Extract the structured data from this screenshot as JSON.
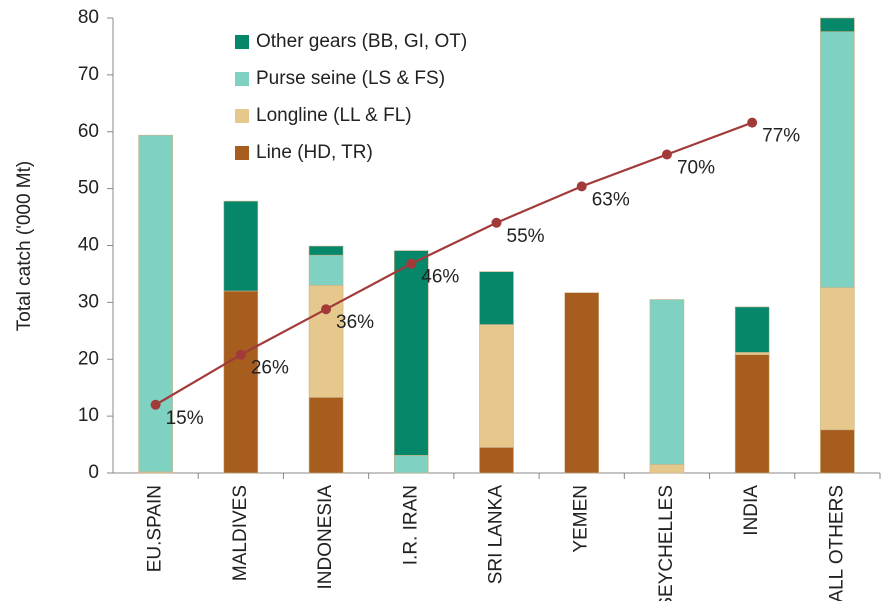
{
  "chart_data": {
    "type": "stacked_bar_line",
    "y_label": "Total catch ('000 Mt)",
    "categories": [
      "EU.SPAIN",
      "MALDIVES",
      "INDONESIA",
      "I.R. IRAN",
      "SRI LANKA",
      "YEMEN",
      "SEYCHELLES",
      "INDIA",
      "ALL OTHERS"
    ],
    "series": [
      {
        "name": "Line (HD, TR)",
        "color": "#a65d1e",
        "values": [
          0,
          32,
          13.3,
          0,
          4.5,
          31.7,
          0,
          20.8,
          7.6
        ]
      },
      {
        "name": "Longline (LL & FL)",
        "color": "#e6c88c",
        "values": [
          0.2,
          0,
          19.7,
          0,
          21.6,
          0,
          1.5,
          0.4,
          25
        ]
      },
      {
        "name": "Purse seine (LS & FS)",
        "color": "#7fd1c2",
        "values": [
          59.2,
          0,
          5.3,
          3.1,
          0,
          0,
          29,
          0,
          45
        ]
      },
      {
        "name": "Other gears (BB, GI, OT)",
        "color": "#07876a",
        "values": [
          0,
          15.8,
          1.6,
          36,
          9.3,
          0,
          0,
          8,
          2.4
        ]
      },
      {
        "type": "line",
        "axis": "y2",
        "color": "#a33a3a",
        "values": [
          15,
          26,
          36,
          46,
          55,
          63,
          70,
          77,
          null
        ],
        "value_labels": [
          "15%",
          "26%",
          "36%",
          "46%",
          "55%",
          "63%",
          "70%",
          "77%",
          null
        ]
      }
    ],
    "ylim": [
      0,
      80
    ],
    "yticks": [
      0,
      10,
      20,
      30,
      40,
      50,
      60,
      70,
      80
    ],
    "y2lim": [
      0,
      100
    ],
    "legend": "upper left",
    "grid": false
  }
}
